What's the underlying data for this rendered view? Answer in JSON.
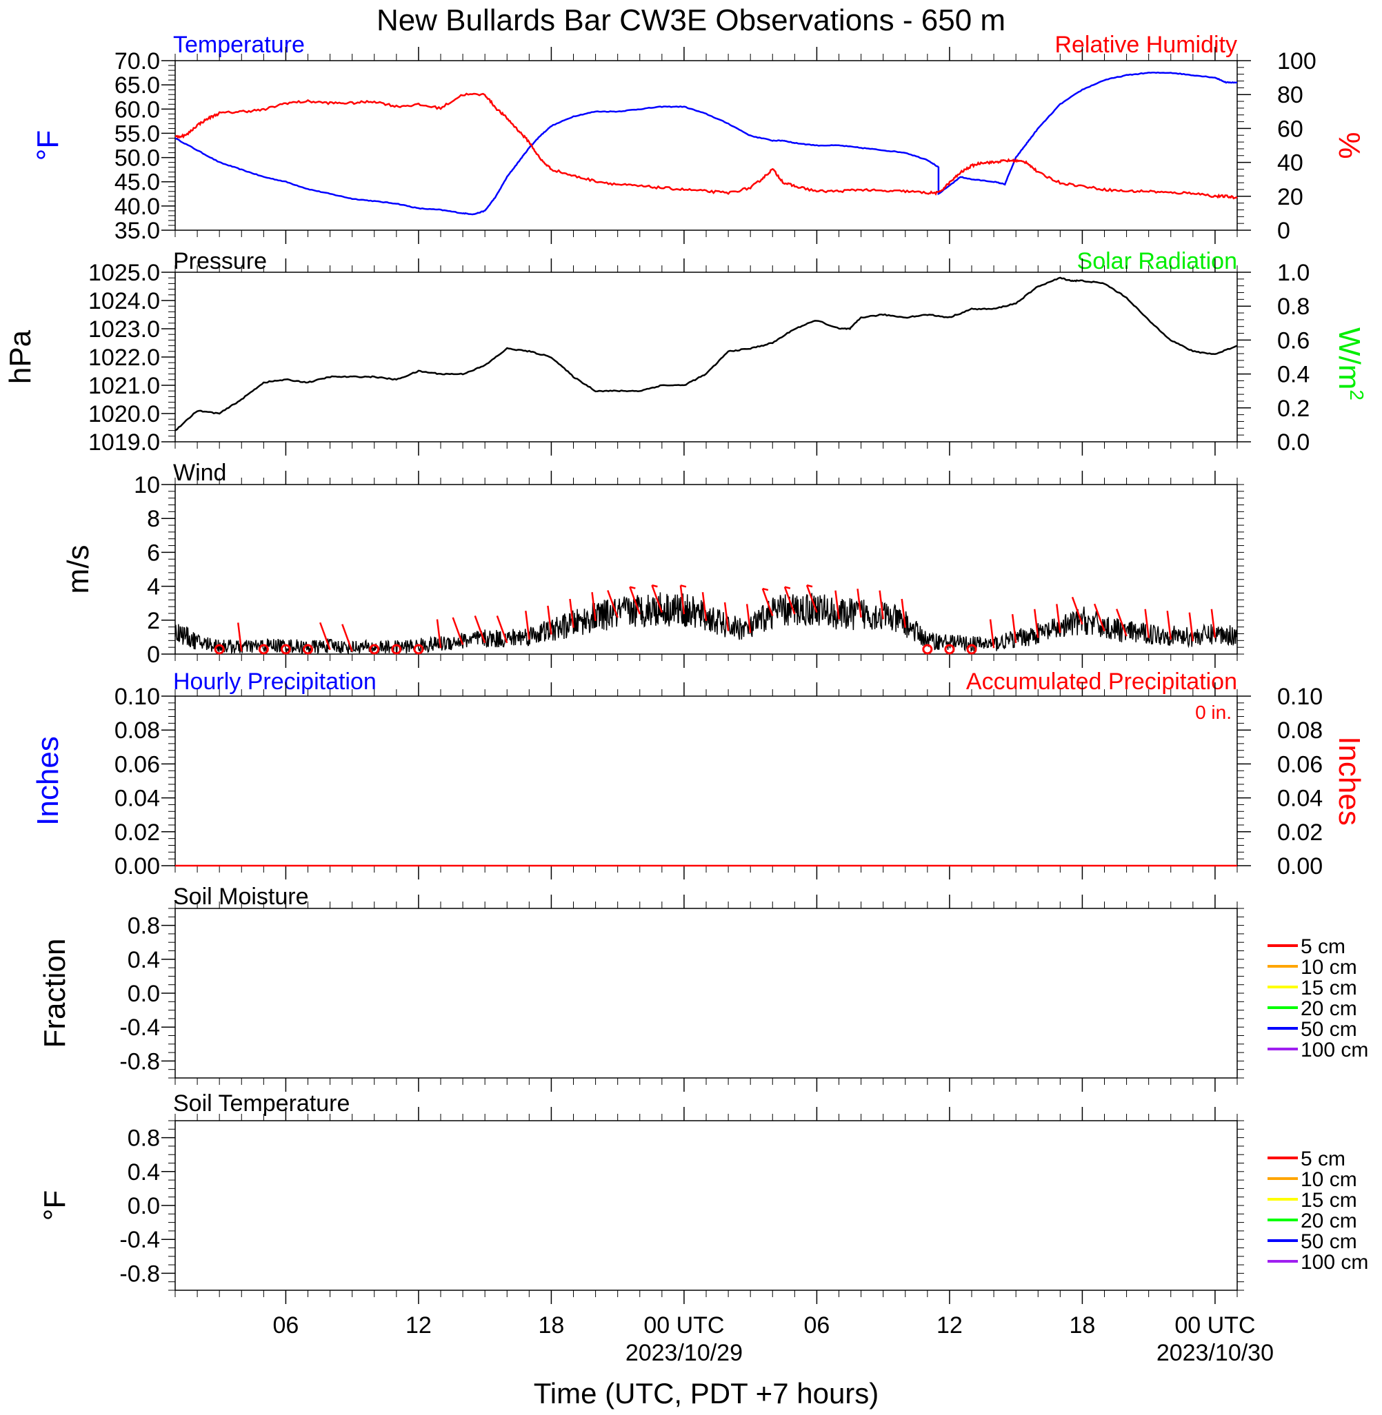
{
  "title": "New Bullards Bar CW3E Observations - 650 m",
  "xlabel": "Time (UTC, PDT +7 hours)",
  "x_ticks": [
    {
      "h": 6,
      "label": "06",
      "date": ""
    },
    {
      "h": 12,
      "label": "12",
      "date": ""
    },
    {
      "h": 18,
      "label": "18",
      "date": ""
    },
    {
      "h": 24,
      "label": "00 UTC",
      "date": "2023/10/29"
    },
    {
      "h": 30,
      "label": "06",
      "date": ""
    },
    {
      "h": 36,
      "label": "12",
      "date": ""
    },
    {
      "h": 42,
      "label": "18",
      "date": ""
    },
    {
      "h": 48,
      "label": "00 UTC",
      "date": "2023/10/30"
    }
  ],
  "colors": {
    "temperature": "#0000ff",
    "humidity": "#ff0000",
    "pressure": "#000000",
    "solar": "#00ee00",
    "wind": "#000000",
    "barb": "#ff0000",
    "hourly": "#0000ff",
    "accum": "#ff0000"
  },
  "chart_data": [
    {
      "id": "temp_rh",
      "type": "line",
      "title_left": "Temperature",
      "title_right": "Relative Humidity",
      "ylabel_left": "°F",
      "ylabel_right": "%",
      "ylim_left": [
        35,
        70
      ],
      "ylim_right": [
        0,
        100
      ],
      "yticks_left": [
        "35.0",
        "40.0",
        "45.0",
        "50.0",
        "55.0",
        "60.0",
        "65.0",
        "70.0"
      ],
      "yticks_right": [
        "0",
        "20",
        "40",
        "60",
        "80",
        "100"
      ],
      "xlim_hours": [
        1,
        49
      ],
      "series": [
        {
          "name": "Temperature",
          "axis": "left",
          "color": "#0000ff",
          "x": [
            1,
            2,
            3,
            4,
            5,
            6,
            7,
            8,
            9,
            10,
            11,
            12,
            13,
            14,
            14.5,
            15,
            15.5,
            16,
            16.5,
            17,
            17.5,
            18,
            19,
            20,
            21,
            22,
            23,
            24,
            25,
            26,
            27,
            28,
            28.5,
            29,
            30,
            31,
            32,
            33,
            34,
            35,
            35.5,
            35.5,
            36.5,
            37,
            38,
            38.5,
            39,
            39.5,
            40,
            41,
            42,
            43,
            44,
            45,
            46,
            47,
            48,
            48.5,
            49
          ],
          "y": [
            54,
            51.5,
            49,
            47.5,
            46,
            45,
            43.5,
            42.5,
            41.5,
            41,
            40.5,
            39.5,
            39.2,
            38.5,
            38.3,
            39,
            42,
            46,
            49,
            52,
            54.5,
            56.5,
            58.5,
            59.5,
            59.5,
            60,
            60.5,
            60.5,
            59,
            57,
            54.5,
            53.5,
            53.5,
            53,
            52.5,
            52.5,
            52,
            51.5,
            51,
            49.5,
            48,
            42.5,
            46,
            45.5,
            45,
            44.5,
            50,
            53,
            56,
            61,
            64,
            66,
            67,
            67.5,
            67.5,
            67,
            66.5,
            65.5,
            65.5
          ]
        },
        {
          "name": "Relative Humidity",
          "axis": "right",
          "color": "#ff0000",
          "x": [
            1,
            1.5,
            2,
            2.5,
            3,
            4,
            5,
            6,
            7,
            8,
            9,
            10,
            11,
            12,
            13,
            14,
            15,
            15.5,
            16,
            16.5,
            17,
            17.5,
            18,
            19,
            20,
            21,
            22,
            23,
            24,
            25,
            26,
            27,
            27.5,
            28,
            28.5,
            29,
            30,
            31,
            32,
            33,
            34,
            35,
            35.5,
            36,
            36.5,
            37,
            37.5,
            38,
            38.5,
            39,
            39.5,
            40,
            41,
            42,
            43,
            44,
            45,
            46,
            47,
            48,
            48.5,
            49
          ],
          "y": [
            55,
            56,
            62,
            66,
            69,
            70,
            71,
            75,
            76,
            75,
            75,
            76,
            73,
            74,
            72,
            80,
            80,
            72,
            66,
            59,
            52,
            42,
            36,
            32,
            29,
            27,
            26,
            25,
            24,
            23,
            22,
            25,
            30,
            36,
            28,
            26,
            23,
            23,
            24,
            23,
            23,
            22,
            22,
            28,
            34,
            38,
            40,
            40,
            41,
            41,
            40,
            34,
            28,
            26,
            24,
            23,
            23,
            22,
            22,
            20,
            20,
            19
          ]
        }
      ]
    },
    {
      "id": "pressure",
      "type": "line",
      "title_left": "Pressure",
      "title_right": "Solar Radiation",
      "ylabel_left": "hPa",
      "ylabel_right": "W/m2",
      "ylim_left": [
        1019,
        1025
      ],
      "ylim_right": [
        0,
        1
      ],
      "yticks_left": [
        "1019.0",
        "1020.0",
        "1021.0",
        "1022.0",
        "1023.0",
        "1024.0",
        "1025.0"
      ],
      "yticks_right": [
        "0.0",
        "0.2",
        "0.4",
        "0.6",
        "0.8",
        "1.0"
      ],
      "xlim_hours": [
        1,
        49
      ],
      "series": [
        {
          "name": "Pressure",
          "axis": "left",
          "color": "#000000",
          "x": [
            1,
            2,
            3,
            4,
            5,
            6,
            7,
            8,
            9,
            10,
            11,
            12,
            13,
            14,
            15,
            16,
            17,
            18,
            19,
            20,
            21,
            22,
            23,
            24,
            25,
            26,
            27,
            28,
            29,
            30,
            31,
            31.5,
            32,
            33,
            34,
            35,
            36,
            37,
            38,
            39,
            40,
            41,
            41.5,
            42,
            43,
            44,
            45,
            46,
            47,
            48,
            49
          ],
          "y": [
            1019.4,
            1020.1,
            1020,
            1020.5,
            1021.1,
            1021.2,
            1021.1,
            1021.3,
            1021.3,
            1021.3,
            1021.2,
            1021.5,
            1021.4,
            1021.4,
            1021.7,
            1022.3,
            1022.2,
            1022,
            1021.3,
            1020.8,
            1020.8,
            1020.8,
            1021,
            1021,
            1021.4,
            1022.2,
            1022.3,
            1022.5,
            1023,
            1023.3,
            1023,
            1023,
            1023.4,
            1023.5,
            1023.4,
            1023.5,
            1023.4,
            1023.7,
            1023.7,
            1023.9,
            1024.5,
            1024.8,
            1024.7,
            1024.7,
            1024.6,
            1024.1,
            1023.3,
            1022.6,
            1022.2,
            1022.1,
            1022.4
          ]
        }
      ]
    },
    {
      "id": "wind",
      "type": "line",
      "title_left": "Wind",
      "ylabel_left": "m/s",
      "ylim_left": [
        0,
        10
      ],
      "yticks_left": [
        "0",
        "2",
        "4",
        "6",
        "8",
        "10"
      ],
      "xlim_hours": [
        1,
        49
      ],
      "series": [
        {
          "name": "Wind",
          "axis": "left",
          "color": "#000000",
          "x": [
            1,
            2,
            3,
            4,
            5,
            6,
            7,
            8,
            9,
            10,
            11,
            12,
            13,
            14,
            15,
            16,
            17,
            18,
            19,
            20,
            21,
            22,
            23,
            24,
            25,
            26,
            27,
            28,
            29,
            30,
            31,
            32,
            33,
            34,
            35,
            36,
            37,
            38,
            39,
            40,
            41,
            42,
            43,
            44,
            45,
            46,
            47,
            48,
            49
          ],
          "y": [
            1.4,
            0.7,
            0.5,
            0.4,
            0.5,
            0.5,
            0.4,
            0.5,
            0.4,
            0.4,
            0.4,
            0.5,
            0.6,
            0.8,
            0.9,
            0.9,
            1.1,
            1.4,
            1.8,
            2.2,
            2.4,
            2.6,
            2.7,
            2.6,
            2.2,
            1.6,
            1.5,
            2.5,
            2.6,
            2.7,
            2.3,
            2.4,
            2.3,
            1.8,
            0.8,
            0.7,
            0.6,
            0.6,
            0.9,
            1.2,
            1.5,
            2,
            1.6,
            1.3,
            1.2,
            1.1,
            1,
            1.2,
            1.1
          ]
        }
      ],
      "barbs_hours": [
        3,
        4,
        5,
        6,
        7,
        8,
        9,
        10,
        11,
        12,
        13,
        14,
        15,
        16,
        17,
        18,
        19,
        20,
        21,
        22,
        23,
        24,
        25,
        26,
        27,
        28,
        29,
        30,
        31,
        32,
        33,
        34,
        35,
        36,
        37,
        38,
        39,
        40,
        41,
        42,
        43,
        44,
        45,
        46,
        47,
        48
      ],
      "calm_hours": [
        3,
        5,
        6,
        7,
        10,
        11,
        12,
        35,
        36,
        37
      ]
    },
    {
      "id": "precip",
      "type": "line",
      "title_left": "Hourly Precipitation",
      "title_right": "Accumulated Precipitation",
      "annotation": "0 in.",
      "ylabel_left": "Inches",
      "ylabel_right": "Inches",
      "ylim_left": [
        0,
        0.1
      ],
      "ylim_right": [
        0,
        0.1
      ],
      "yticks_left": [
        "0.00",
        "0.02",
        "0.04",
        "0.06",
        "0.08",
        "0.10"
      ],
      "yticks_right": [
        "0.00",
        "0.02",
        "0.04",
        "0.06",
        "0.08",
        "0.10"
      ],
      "xlim_hours": [
        1,
        49
      ],
      "series": [
        {
          "name": "Accumulated Precipitation",
          "axis": "right",
          "color": "#ff0000",
          "x": [
            1,
            49
          ],
          "y": [
            0,
            0
          ]
        }
      ]
    },
    {
      "id": "soil_moisture",
      "type": "line",
      "title_left": "Soil Moisture",
      "ylabel_left": "Fraction",
      "ylim_left": [
        -1,
        1
      ],
      "yticks_left": [
        "-0.8",
        "-0.4",
        "0.0",
        "0.4",
        "0.8"
      ],
      "xlim_hours": [
        1,
        49
      ],
      "legend": [
        {
          "name": "5 cm",
          "color": "#ff0000"
        },
        {
          "name": "10 cm",
          "color": "#ffa500"
        },
        {
          "name": "15 cm",
          "color": "#ffff00"
        },
        {
          "name": "20 cm",
          "color": "#00ff00"
        },
        {
          "name": "50 cm",
          "color": "#0000ff"
        },
        {
          "name": "100 cm",
          "color": "#a020f0"
        }
      ],
      "series": []
    },
    {
      "id": "soil_temp",
      "type": "line",
      "title_left": "Soil Temperature",
      "ylabel_left": "°F",
      "ylim_left": [
        -1,
        1
      ],
      "yticks_left": [
        "-0.8",
        "-0.4",
        "0.0",
        "0.4",
        "0.8"
      ],
      "xlim_hours": [
        1,
        49
      ],
      "legend": [
        {
          "name": "5 cm",
          "color": "#ff0000"
        },
        {
          "name": "10 cm",
          "color": "#ffa500"
        },
        {
          "name": "15 cm",
          "color": "#ffff00"
        },
        {
          "name": "20 cm",
          "color": "#00ff00"
        },
        {
          "name": "50 cm",
          "color": "#0000ff"
        },
        {
          "name": "100 cm",
          "color": "#a020f0"
        }
      ],
      "series": []
    }
  ]
}
